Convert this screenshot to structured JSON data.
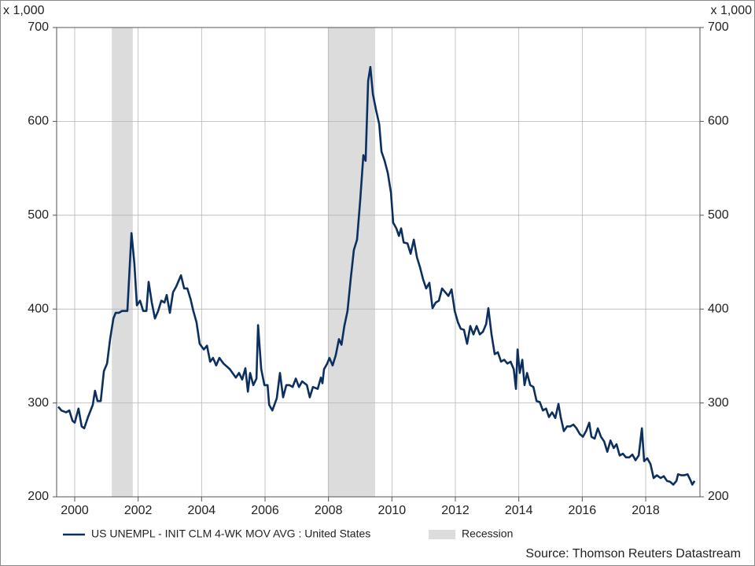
{
  "chart_data": {
    "type": "line",
    "y_unit": "x 1,000",
    "source": "Source: Thomson Reuters Datastream",
    "legend": "bottom",
    "grid": true,
    "xlim": [
      1999.43,
      2019.71
    ],
    "xticks": [
      2000,
      2002,
      2004,
      2006,
      2008,
      2010,
      2012,
      2014,
      2016,
      2018
    ],
    "ylim": [
      200,
      700
    ],
    "yticks": [
      200,
      300,
      400,
      500,
      600,
      700
    ],
    "y2lim": [
      200,
      700
    ],
    "y2ticks": [
      200,
      300,
      400,
      500,
      600,
      700
    ],
    "recessions": {
      "name": "Recession",
      "color": "#dcdcdc",
      "spans": [
        [
          2001.17,
          2001.83
        ],
        [
          2007.98,
          2009.47
        ]
      ]
    },
    "x": [
      1999.48,
      1999.58,
      1999.73,
      1999.83,
      1999.93,
      2000.0,
      2000.12,
      2000.22,
      2000.3,
      2000.42,
      2000.57,
      2000.64,
      2000.72,
      2000.82,
      2000.92,
      2001.02,
      2001.12,
      2001.22,
      2001.29,
      2001.39,
      2001.49,
      2001.66,
      2001.79,
      2001.88,
      2001.96,
      2002.06,
      2002.16,
      2002.26,
      2002.33,
      2002.43,
      2002.53,
      2002.63,
      2002.73,
      2002.83,
      2002.9,
      2003.0,
      2003.1,
      2003.2,
      2003.35,
      2003.45,
      2003.55,
      2003.65,
      2003.74,
      2003.84,
      2003.94,
      2004.07,
      2004.17,
      2004.27,
      2004.36,
      2004.46,
      2004.56,
      2004.69,
      2004.89,
      2005.08,
      2005.18,
      2005.28,
      2005.38,
      2005.46,
      2005.53,
      2005.63,
      2005.73,
      2005.78,
      2005.88,
      2005.98,
      2006.08,
      2006.13,
      2006.23,
      2006.37,
      2006.47,
      2006.57,
      2006.67,
      2006.77,
      2006.87,
      2006.97,
      2007.07,
      2007.17,
      2007.32,
      2007.41,
      2007.51,
      2007.66,
      2007.76,
      2007.81,
      2007.86,
      2007.96,
      2008.03,
      2008.13,
      2008.23,
      2008.33,
      2008.41,
      2008.5,
      2008.6,
      2008.7,
      2008.8,
      2008.9,
      2009.0,
      2009.1,
      2009.17,
      2009.25,
      2009.32,
      2009.4,
      2009.5,
      2009.6,
      2009.67,
      2009.77,
      2009.87,
      2009.97,
      2010.04,
      2010.14,
      2010.22,
      2010.29,
      2010.37,
      2010.49,
      2010.59,
      2010.69,
      2010.79,
      2010.89,
      2010.98,
      2011.08,
      2011.18,
      2011.28,
      2011.38,
      2011.48,
      2011.58,
      2011.68,
      2011.78,
      2011.88,
      2011.98,
      2012.08,
      2012.17,
      2012.27,
      2012.37,
      2012.47,
      2012.57,
      2012.67,
      2012.77,
      2012.87,
      2012.97,
      2013.04,
      2013.14,
      2013.24,
      2013.34,
      2013.44,
      2013.54,
      2013.64,
      2013.74,
      2013.84,
      2013.91,
      2013.96,
      2014.03,
      2014.11,
      2014.18,
      2014.26,
      2014.36,
      2014.46,
      2014.56,
      2014.66,
      2014.76,
      2014.86,
      2014.95,
      2015.05,
      2015.15,
      2015.25,
      2015.32,
      2015.42,
      2015.52,
      2015.62,
      2015.72,
      2015.82,
      2015.92,
      2016.02,
      2016.12,
      2016.22,
      2016.29,
      2016.39,
      2016.49,
      2016.59,
      2016.69,
      2016.79,
      2016.89,
      2016.99,
      2017.08,
      2017.18,
      2017.28,
      2017.38,
      2017.48,
      2017.58,
      2017.68,
      2017.78,
      2017.88,
      2017.95,
      2018.05,
      2018.15,
      2018.25,
      2018.35,
      2018.47,
      2018.57,
      2018.67,
      2018.77,
      2018.87,
      2018.97,
      2019.02,
      2019.12,
      2019.22,
      2019.32,
      2019.42,
      2019.47,
      2019.54
    ],
    "series": [
      {
        "name": "US UNEMPL - INIT CLM 4-WK MOV AVG : United States",
        "color": "#0b2f5e",
        "values": [
          296,
          292,
          290,
          292,
          281,
          279,
          294,
          275,
          273,
          285,
          298,
          313,
          302,
          302,
          334,
          342,
          369,
          390,
          396,
          396,
          398,
          398,
          481,
          449,
          404,
          409,
          398,
          398,
          429,
          407,
          390,
          398,
          409,
          407,
          415,
          396,
          418,
          424,
          436,
          422,
          422,
          411,
          398,
          386,
          363,
          357,
          361,
          344,
          348,
          340,
          348,
          342,
          336,
          327,
          332,
          325,
          337,
          312,
          332,
          319,
          326,
          383,
          336,
          319,
          319,
          298,
          292,
          305,
          332,
          306,
          319,
          319,
          317,
          326,
          317,
          323,
          319,
          306,
          317,
          315,
          327,
          321,
          336,
          342,
          348,
          340,
          351,
          368,
          362,
          382,
          398,
          432,
          463,
          474,
          516,
          564,
          558,
          643,
          658,
          629,
          612,
          597,
          568,
          558,
          545,
          524,
          492,
          486,
          478,
          486,
          471,
          470,
          459,
          474,
          455,
          444,
          432,
          422,
          428,
          401,
          407,
          409,
          422,
          418,
          414,
          421,
          398,
          386,
          379,
          378,
          363,
          382,
          373,
          382,
          373,
          376,
          384,
          401,
          373,
          352,
          354,
          344,
          346,
          342,
          344,
          336,
          315,
          357,
          332,
          346,
          319,
          332,
          319,
          317,
          302,
          301,
          292,
          294,
          285,
          290,
          284,
          299,
          285,
          270,
          275,
          275,
          277,
          273,
          267,
          264,
          270,
          279,
          264,
          262,
          273,
          264,
          259,
          248,
          260,
          252,
          256,
          244,
          246,
          242,
          242,
          245,
          239,
          244,
          273,
          238,
          241,
          235,
          220,
          223,
          220,
          222,
          217,
          216,
          213,
          217,
          224,
          223,
          223,
          224,
          217,
          213,
          217
        ]
      }
    ]
  }
}
